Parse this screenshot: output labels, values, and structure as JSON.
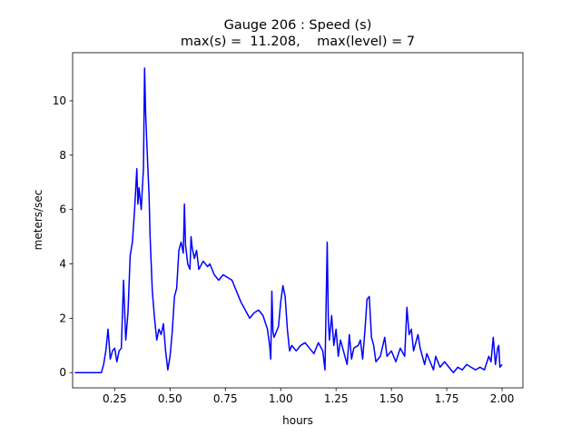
{
  "chart_data": {
    "type": "line",
    "title": "Gauge 206 : Speed (s)",
    "subtitle": "max(s) =  11.208,    max(level) = 7",
    "x_label": "hours",
    "y_label": "meters/sec",
    "xlim": [
      0.06,
      2.094
    ],
    "ylim": [
      -0.56,
      11.77
    ],
    "xticks": [
      0.25,
      {
        "value": 0.5,
        "label": "0.50"
      },
      0.75,
      {
        "value": 1,
        "label": "1.00"
      },
      1.25,
      {
        "value": 1.5,
        "label": "1.50"
      },
      1.75,
      {
        "value": 2,
        "label": "2.00"
      }
    ],
    "yticks": [
      0,
      2,
      4,
      6,
      8,
      10
    ],
    "grid": false,
    "series": [
      {
        "name": "s",
        "color": "#0000ff",
        "x": [
          0.07,
          0.19,
          0.2,
          0.21,
          0.22,
          0.23,
          0.24,
          0.25,
          0.26,
          0.27,
          0.28,
          0.29,
          0.3,
          0.31,
          0.32,
          0.33,
          0.34,
          0.35,
          0.355,
          0.36,
          0.37,
          0.375,
          0.38,
          0.385,
          0.39,
          0.4,
          0.405,
          0.41,
          0.42,
          0.43,
          0.44,
          0.45,
          0.46,
          0.47,
          0.48,
          0.49,
          0.5,
          0.51,
          0.52,
          0.53,
          0.54,
          0.55,
          0.56,
          0.565,
          0.57,
          0.58,
          0.59,
          0.595,
          0.6,
          0.61,
          0.62,
          0.63,
          0.65,
          0.67,
          0.68,
          0.7,
          0.72,
          0.74,
          0.76,
          0.78,
          0.8,
          0.82,
          0.84,
          0.86,
          0.88,
          0.9,
          0.92,
          0.94,
          0.95,
          0.955,
          0.96,
          0.965,
          0.97,
          0.99,
          1.0,
          1.01,
          1.02,
          1.03,
          1.04,
          1.05,
          1.07,
          1.09,
          1.11,
          1.13,
          1.15,
          1.17,
          1.19,
          1.2,
          1.21,
          1.215,
          1.22,
          1.23,
          1.24,
          1.25,
          1.26,
          1.27,
          1.28,
          1.3,
          1.31,
          1.32,
          1.33,
          1.35,
          1.36,
          1.37,
          1.38,
          1.39,
          1.4,
          1.41,
          1.42,
          1.43,
          1.45,
          1.47,
          1.48,
          1.5,
          1.52,
          1.54,
          1.56,
          1.57,
          1.58,
          1.59,
          1.6,
          1.62,
          1.63,
          1.65,
          1.66,
          1.68,
          1.69,
          1.7,
          1.72,
          1.74,
          1.76,
          1.78,
          1.8,
          1.82,
          1.84,
          1.86,
          1.88,
          1.9,
          1.92,
          1.94,
          1.95,
          1.96,
          1.97,
          1.98,
          1.985,
          1.99,
          2.0
        ],
        "values": [
          0,
          0,
          0.3,
          0.8,
          1.6,
          0.5,
          0.8,
          0.9,
          0.4,
          0.8,
          0.9,
          3.4,
          1.2,
          2.2,
          4.3,
          4.8,
          6.0,
          7.5,
          6.2,
          6.8,
          6.0,
          6.8,
          7.5,
          11.2,
          9.5,
          7.5,
          6.6,
          5.0,
          3.0,
          2.0,
          1.2,
          1.6,
          1.4,
          1.8,
          0.8,
          0.1,
          0.6,
          1.5,
          2.8,
          3.1,
          4.5,
          4.8,
          4.4,
          6.2,
          4.7,
          4.0,
          3.8,
          5.0,
          4.6,
          4.2,
          4.5,
          3.8,
          4.1,
          3.9,
          4.0,
          3.6,
          3.4,
          3.6,
          3.5,
          3.4,
          3.0,
          2.6,
          2.3,
          2.0,
          2.2,
          2.3,
          2.1,
          1.6,
          1.0,
          0.5,
          3.0,
          1.5,
          1.3,
          1.7,
          2.6,
          3.2,
          2.8,
          1.6,
          0.8,
          1.0,
          0.8,
          1.0,
          1.1,
          0.9,
          0.7,
          1.1,
          0.8,
          0.1,
          4.8,
          2.0,
          1.2,
          2.1,
          1.0,
          1.6,
          0.6,
          1.2,
          0.9,
          0.3,
          1.4,
          0.5,
          0.9,
          1.0,
          1.2,
          0.5,
          1.5,
          2.7,
          2.8,
          1.3,
          1.0,
          0.4,
          0.6,
          1.3,
          0.6,
          0.8,
          0.4,
          0.9,
          0.6,
          2.4,
          1.4,
          1.6,
          0.8,
          1.4,
          0.9,
          0.3,
          0.7,
          0.3,
          0.1,
          0.6,
          0.2,
          0.4,
          0.2,
          0.0,
          0.2,
          0.1,
          0.3,
          0.2,
          0.1,
          0.2,
          0.1,
          0.6,
          0.4,
          1.3,
          0.3,
          0.9,
          1.0,
          0.2,
          0.3
        ]
      }
    ]
  }
}
